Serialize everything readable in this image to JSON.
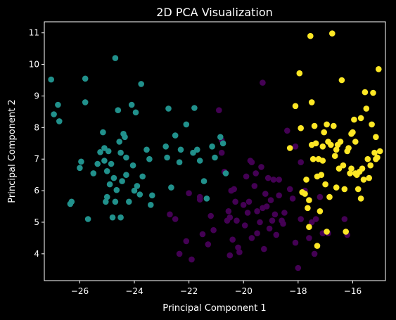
{
  "chart_data": {
    "type": "scatter",
    "title": "2D PCA Visualization",
    "xlabel": "Principal Component 1",
    "ylabel": "Principal Component 2",
    "xlim": [
      -27.3,
      -14.8
    ],
    "ylim": [
      3.15,
      11.35
    ],
    "xticks": [
      -26,
      -24,
      -22,
      -20,
      -18,
      -16
    ],
    "yticks": [
      4,
      5,
      6,
      7,
      8,
      9,
      10,
      11
    ],
    "grid": false,
    "legend": "none",
    "series": [
      {
        "color": "#440154",
        "points": [
          [
            -22.0,
            5.92
          ],
          [
            -22.7,
            5.25
          ],
          [
            -22.5,
            5.1
          ],
          [
            -22.35,
            4.0
          ],
          [
            -22.1,
            4.4
          ],
          [
            -21.9,
            3.82
          ],
          [
            -21.6,
            5.72
          ],
          [
            -21.6,
            5.8
          ],
          [
            -21.5,
            4.62
          ],
          [
            -21.3,
            4.3
          ],
          [
            -21.2,
            5.2
          ],
          [
            -21.1,
            4.75
          ],
          [
            -20.9,
            8.55
          ],
          [
            -20.8,
            7.2
          ],
          [
            -20.8,
            7.6
          ],
          [
            -20.7,
            6.6
          ],
          [
            -20.6,
            5.05
          ],
          [
            -20.55,
            5.35
          ],
          [
            -20.5,
            5.15
          ],
          [
            -20.5,
            3.95
          ],
          [
            -20.45,
            6.0
          ],
          [
            -20.4,
            4.45
          ],
          [
            -20.35,
            6.05
          ],
          [
            -20.3,
            5.65
          ],
          [
            -20.25,
            5.05
          ],
          [
            -20.2,
            4.2
          ],
          [
            -20.15,
            4.05
          ],
          [
            -20.0,
            5.55
          ],
          [
            -19.95,
            4.9
          ],
          [
            -19.9,
            6.45
          ],
          [
            -19.85,
            5.3
          ],
          [
            -19.8,
            5.65
          ],
          [
            -19.75,
            6.95
          ],
          [
            -19.7,
            6.9
          ],
          [
            -19.7,
            4.5
          ],
          [
            -19.6,
            6.15
          ],
          [
            -19.55,
            6.55
          ],
          [
            -19.5,
            5.35
          ],
          [
            -19.5,
            4.65
          ],
          [
            -19.4,
            5.0
          ],
          [
            -19.35,
            6.75
          ],
          [
            -19.3,
            5.45
          ],
          [
            -19.25,
            4.15
          ],
          [
            -19.2,
            5.9
          ],
          [
            -19.15,
            5.5
          ],
          [
            -19.1,
            6.4
          ],
          [
            -19.05,
            4.8
          ],
          [
            -19.0,
            5.7
          ],
          [
            -18.95,
            5.05
          ],
          [
            -18.9,
            6.35
          ],
          [
            -18.85,
            5.25
          ],
          [
            -18.8,
            4.6
          ],
          [
            -18.7,
            5.85
          ],
          [
            -18.6,
            5.05
          ],
          [
            -18.55,
            4.95
          ],
          [
            -18.5,
            5.3
          ],
          [
            -18.4,
            7.9
          ],
          [
            -18.3,
            6.05
          ],
          [
            -18.2,
            5.75
          ],
          [
            -18.1,
            4.35
          ],
          [
            -18.0,
            3.55
          ],
          [
            -17.9,
            5.1
          ],
          [
            -17.75,
            6.0
          ],
          [
            -17.6,
            4.5
          ],
          [
            -17.5,
            5.0
          ],
          [
            -17.4,
            4.0
          ],
          [
            -17.35,
            5.1
          ],
          [
            -17.2,
            5.8
          ],
          [
            -16.9,
            4.65
          ],
          [
            -16.3,
            5.1
          ],
          [
            -16.2,
            4.6
          ],
          [
            -19.3,
            9.42
          ],
          [
            -18.1,
            7.4
          ],
          [
            -17.9,
            6.9
          ],
          [
            -18.7,
            6.35
          ],
          [
            -17.1,
            4.65
          ]
        ]
      },
      {
        "color": "#21918c",
        "points": [
          [
            -27.05,
            9.52
          ],
          [
            -26.95,
            8.42
          ],
          [
            -26.8,
            8.72
          ],
          [
            -26.75,
            8.2
          ],
          [
            -26.35,
            5.58
          ],
          [
            -26.3,
            5.65
          ],
          [
            -26.0,
            6.72
          ],
          [
            -25.95,
            6.92
          ],
          [
            -25.8,
            9.55
          ],
          [
            -25.8,
            8.8
          ],
          [
            -25.7,
            5.1
          ],
          [
            -25.5,
            6.55
          ],
          [
            -25.25,
            7.22
          ],
          [
            -25.15,
            7.85
          ],
          [
            -25.1,
            6.95
          ],
          [
            -25.05,
            5.65
          ],
          [
            -25.0,
            6.62
          ],
          [
            -25.0,
            5.8
          ],
          [
            -24.95,
            7.25
          ],
          [
            -24.9,
            6.2
          ],
          [
            -24.85,
            6.85
          ],
          [
            -24.8,
            5.15
          ],
          [
            -24.75,
            6.4
          ],
          [
            -24.7,
            5.65
          ],
          [
            -24.65,
            6.02
          ],
          [
            -24.6,
            8.55
          ],
          [
            -24.55,
            7.55
          ],
          [
            -24.5,
            7.2
          ],
          [
            -24.5,
            5.15
          ],
          [
            -24.45,
            6.3
          ],
          [
            -24.4,
            7.8
          ],
          [
            -24.35,
            7.7
          ],
          [
            -24.3,
            7.05
          ],
          [
            -24.2,
            5.65
          ],
          [
            -24.1,
            8.72
          ],
          [
            -24.05,
            6.8
          ],
          [
            -24.0,
            6.0
          ],
          [
            -23.95,
            8.48
          ],
          [
            -23.9,
            6.15
          ],
          [
            -23.8,
            5.88
          ],
          [
            -23.75,
            9.38
          ],
          [
            -23.7,
            6.45
          ],
          [
            -23.55,
            7.3
          ],
          [
            -23.45,
            7.0
          ],
          [
            -23.4,
            5.55
          ],
          [
            -23.35,
            5.85
          ],
          [
            -22.85,
            7.4
          ],
          [
            -22.8,
            7.05
          ],
          [
            -22.75,
            8.6
          ],
          [
            -22.65,
            6.1
          ],
          [
            -22.5,
            7.75
          ],
          [
            -22.35,
            6.9
          ],
          [
            -22.3,
            7.3
          ],
          [
            -22.1,
            8.1
          ],
          [
            -21.85,
            7.2
          ],
          [
            -21.8,
            8.62
          ],
          [
            -21.7,
            7.3
          ],
          [
            -21.6,
            6.95
          ],
          [
            -21.45,
            6.3
          ],
          [
            -21.35,
            5.75
          ],
          [
            -21.15,
            7.4
          ],
          [
            -21.05,
            7.05
          ],
          [
            -20.85,
            7.7
          ],
          [
            -20.75,
            7.5
          ],
          [
            -20.65,
            6.55
          ],
          [
            -24.7,
            10.2
          ],
          [
            -25.1,
            7.35
          ],
          [
            -24.3,
            6.5
          ],
          [
            -25.35,
            6.85
          ]
        ]
      },
      {
        "color": "#fde725",
        "points": [
          [
            -18.3,
            7.35
          ],
          [
            -18.1,
            8.68
          ],
          [
            -17.95,
            9.72
          ],
          [
            -17.9,
            7.98
          ],
          [
            -17.85,
            5.95
          ],
          [
            -17.75,
            5.9
          ],
          [
            -17.7,
            6.35
          ],
          [
            -17.65,
            5.45
          ],
          [
            -17.6,
            4.85
          ],
          [
            -17.55,
            10.9
          ],
          [
            -17.5,
            8.8
          ],
          [
            -17.5,
            7.45
          ],
          [
            -17.45,
            7.0
          ],
          [
            -17.4,
            8.05
          ],
          [
            -17.35,
            7.5
          ],
          [
            -17.3,
            4.25
          ],
          [
            -17.25,
            7.0
          ],
          [
            -17.2,
            5.35
          ],
          [
            -17.15,
            6.5
          ],
          [
            -17.1,
            7.4
          ],
          [
            -17.05,
            7.85
          ],
          [
            -17.0,
            6.2
          ],
          [
            -16.95,
            8.1
          ],
          [
            -16.9,
            7.55
          ],
          [
            -16.85,
            5.8
          ],
          [
            -16.8,
            7.45
          ],
          [
            -16.75,
            10.98
          ],
          [
            -16.7,
            8.05
          ],
          [
            -16.65,
            7.1
          ],
          [
            -16.6,
            6.1
          ],
          [
            -16.55,
            7.45
          ],
          [
            -16.5,
            6.7
          ],
          [
            -16.45,
            7.55
          ],
          [
            -16.4,
            9.5
          ],
          [
            -16.35,
            6.8
          ],
          [
            -16.3,
            6.05
          ],
          [
            -16.25,
            4.7
          ],
          [
            -16.2,
            7.25
          ],
          [
            -16.15,
            7.35
          ],
          [
            -16.1,
            6.55
          ],
          [
            -16.05,
            7.8
          ],
          [
            -16.0,
            7.85
          ],
          [
            -15.95,
            8.25
          ],
          [
            -15.9,
            7.55
          ],
          [
            -15.85,
            6.5
          ],
          [
            -15.8,
            6.05
          ],
          [
            -15.75,
            6.6
          ],
          [
            -15.7,
            5.75
          ],
          [
            -15.65,
            6.7
          ],
          [
            -15.6,
            6.35
          ],
          [
            -15.55,
            9.12
          ],
          [
            -15.5,
            8.6
          ],
          [
            -15.45,
            7.0
          ],
          [
            -15.4,
            6.4
          ],
          [
            -15.35,
            6.8
          ],
          [
            -15.3,
            8.1
          ],
          [
            -15.25,
            9.1
          ],
          [
            -15.2,
            7.2
          ],
          [
            -15.15,
            7.7
          ],
          [
            -15.1,
            7.05
          ],
          [
            -15.05,
            9.85
          ],
          [
            -15.0,
            7.25
          ],
          [
            -15.7,
            8.3
          ],
          [
            -16.05,
            6.7
          ],
          [
            -17.3,
            6.45
          ],
          [
            -17.1,
            6.95
          ],
          [
            -16.6,
            7.3
          ],
          [
            -15.9,
            6.55
          ],
          [
            -16.95,
            4.7
          ],
          [
            -17.6,
            5.7
          ],
          [
            -15.15,
            7.0
          ]
        ]
      }
    ]
  }
}
